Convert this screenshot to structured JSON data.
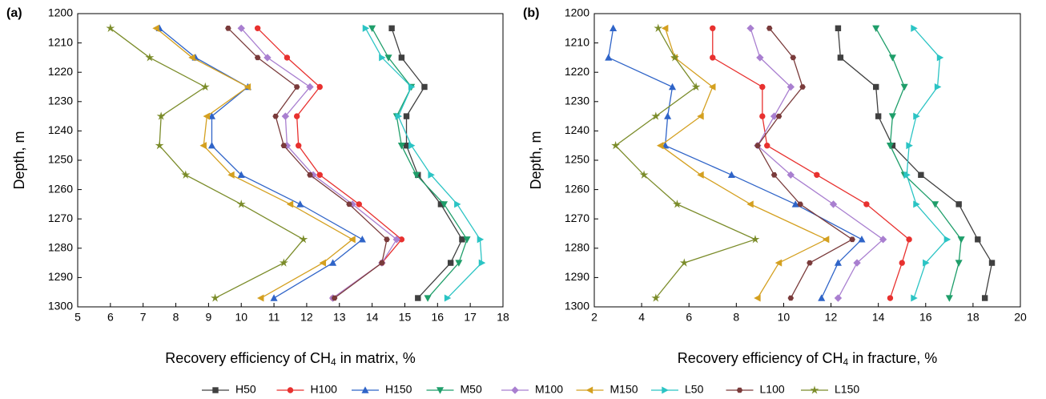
{
  "chart_data": [
    {
      "type": "line",
      "label": "(a)",
      "ylabel": "Depth, m",
      "xlabel": [
        "Recovery efficiency of CH",
        "4",
        " in matrix, %"
      ],
      "xlim": [
        5,
        18
      ],
      "xticks": [
        5,
        6,
        7,
        8,
        9,
        10,
        11,
        12,
        13,
        14,
        15,
        16,
        17,
        18
      ],
      "ylim": [
        1200,
        1300
      ],
      "yticks": [
        1200,
        1210,
        1220,
        1230,
        1240,
        1250,
        1260,
        1270,
        1280,
        1290,
        1300
      ],
      "y_inverted": true,
      "y": [
        1205,
        1215,
        1225,
        1235,
        1245,
        1255,
        1265,
        1277,
        1285,
        1297
      ],
      "series": [
        {
          "name": "H50",
          "color": "#404040",
          "values": [
            14.6,
            14.9,
            15.6,
            15.05,
            15.05,
            15.4,
            16.1,
            16.75,
            16.4,
            15.4
          ]
        },
        {
          "name": "H100",
          "color": "#e8312f",
          "values": [
            10.5,
            11.4,
            12.4,
            11.7,
            11.75,
            12.4,
            13.6,
            14.9,
            14.3,
            12.8
          ]
        },
        {
          "name": "H150",
          "color": "#2f64c8",
          "values": [
            7.5,
            8.6,
            10.2,
            9.1,
            9.1,
            10.0,
            11.8,
            13.7,
            12.8,
            11.0
          ]
        },
        {
          "name": "M50",
          "color": "#1f9e6a",
          "values": [
            14.0,
            14.5,
            15.2,
            14.75,
            14.9,
            15.35,
            16.2,
            16.9,
            16.65,
            15.7
          ]
        },
        {
          "name": "M100",
          "color": "#a97fd0",
          "values": [
            10.0,
            10.8,
            12.1,
            11.35,
            11.4,
            12.2,
            13.4,
            14.75,
            14.3,
            12.8
          ]
        },
        {
          "name": "M150",
          "color": "#d4a020",
          "values": [
            7.4,
            8.5,
            10.2,
            8.95,
            8.85,
            9.7,
            11.5,
            13.4,
            12.5,
            10.6
          ]
        },
        {
          "name": "L50",
          "color": "#2bc4c4",
          "values": [
            13.8,
            14.3,
            15.2,
            14.8,
            15.2,
            15.8,
            16.6,
            17.3,
            17.35,
            16.3
          ]
        },
        {
          "name": "L100",
          "color": "#7a3b3b",
          "values": [
            9.6,
            10.5,
            11.7,
            11.05,
            11.3,
            12.1,
            13.3,
            14.45,
            14.3,
            12.85
          ]
        },
        {
          "name": "L150",
          "color": "#7b8c2a",
          "values": [
            6.0,
            7.2,
            8.9,
            7.55,
            7.5,
            8.3,
            10.0,
            11.9,
            11.3,
            9.2
          ]
        }
      ]
    },
    {
      "type": "line",
      "label": "(b)",
      "ylabel": "Depth, m",
      "xlabel": [
        "Recovery efficiency of CH",
        "4",
        " in fracture, %"
      ],
      "xlim": [
        2,
        20
      ],
      "xticks": [
        2,
        4,
        6,
        8,
        10,
        12,
        14,
        16,
        18,
        20
      ],
      "ylim": [
        1200,
        1300
      ],
      "yticks": [
        1200,
        1210,
        1220,
        1230,
        1240,
        1250,
        1260,
        1270,
        1280,
        1290,
        1300
      ],
      "y_inverted": true,
      "y": [
        1205,
        1215,
        1225,
        1235,
        1245,
        1255,
        1265,
        1277,
        1285,
        1297
      ],
      "series": [
        {
          "name": "H50",
          "color": "#404040",
          "values": [
            12.3,
            12.4,
            13.9,
            14.0,
            14.6,
            15.8,
            17.4,
            18.2,
            18.8,
            18.5
          ]
        },
        {
          "name": "H100",
          "color": "#e8312f",
          "values": [
            7.0,
            7.0,
            9.1,
            9.1,
            9.3,
            11.4,
            13.5,
            15.3,
            15.0,
            14.5
          ]
        },
        {
          "name": "H150",
          "color": "#2f64c8",
          "values": [
            2.8,
            2.6,
            5.3,
            5.1,
            5.0,
            7.8,
            10.5,
            13.3,
            12.3,
            11.6
          ]
        },
        {
          "name": "M50",
          "color": "#1f9e6a",
          "values": [
            13.9,
            14.6,
            15.1,
            14.6,
            14.5,
            15.1,
            16.4,
            17.5,
            17.4,
            17.0
          ]
        },
        {
          "name": "M100",
          "color": "#a97fd0",
          "values": [
            8.6,
            9.0,
            10.3,
            9.6,
            8.9,
            10.3,
            12.1,
            14.2,
            13.1,
            12.3
          ]
        },
        {
          "name": "M150",
          "color": "#d4a020",
          "values": [
            5.0,
            5.4,
            7.0,
            6.5,
            4.8,
            6.5,
            8.6,
            11.8,
            9.8,
            8.9
          ]
        },
        {
          "name": "L50",
          "color": "#2bc4c4",
          "values": [
            15.5,
            16.6,
            16.5,
            15.6,
            15.3,
            15.2,
            15.6,
            16.9,
            16.0,
            15.5
          ]
        },
        {
          "name": "L100",
          "color": "#7a3b3b",
          "values": [
            9.4,
            10.4,
            10.8,
            9.8,
            8.9,
            9.6,
            10.7,
            12.9,
            11.1,
            10.3
          ]
        },
        {
          "name": "L150",
          "color": "#7b8c2a",
          "values": [
            4.7,
            5.4,
            6.3,
            4.6,
            2.9,
            4.1,
            5.5,
            8.8,
            5.8,
            4.6
          ]
        }
      ]
    }
  ]
}
